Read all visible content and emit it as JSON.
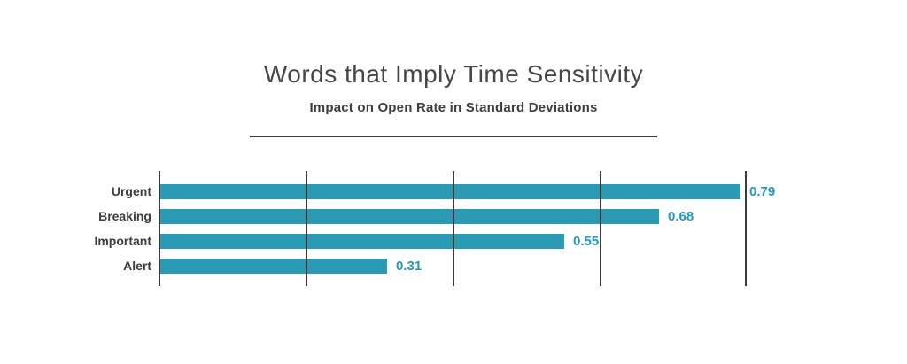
{
  "page": {
    "background": "#ffffff"
  },
  "header": {
    "title": "Words that Imply Time Sensitivity",
    "subtitle": "Impact on Open Rate in Standard Deviations"
  },
  "chart_data": {
    "type": "bar",
    "orientation": "horizontal",
    "title": "Words that Imply Time Sensitivity",
    "subtitle": "Impact on Open Rate in Standard Deviations",
    "categories": [
      "Urgent",
      "Breaking",
      "Important",
      "Alert"
    ],
    "values": [
      0.79,
      0.68,
      0.55,
      0.31
    ],
    "value_labels": [
      "0.79",
      "0.68",
      "0.55",
      "0.31"
    ],
    "xlabel": "",
    "ylabel": "",
    "xlim": [
      0,
      0.8
    ],
    "gridline_step": 0.2,
    "grid": true,
    "legend": false,
    "data_labels": true,
    "colors": {
      "bar": "#2b9ab5",
      "value_label": "#2497bd",
      "gridline": "#3a3a3a",
      "category_label": "#3d3e40",
      "title": "#454647",
      "subtitle": "#3d3e3f",
      "divider": "#3a3a3a"
    }
  }
}
